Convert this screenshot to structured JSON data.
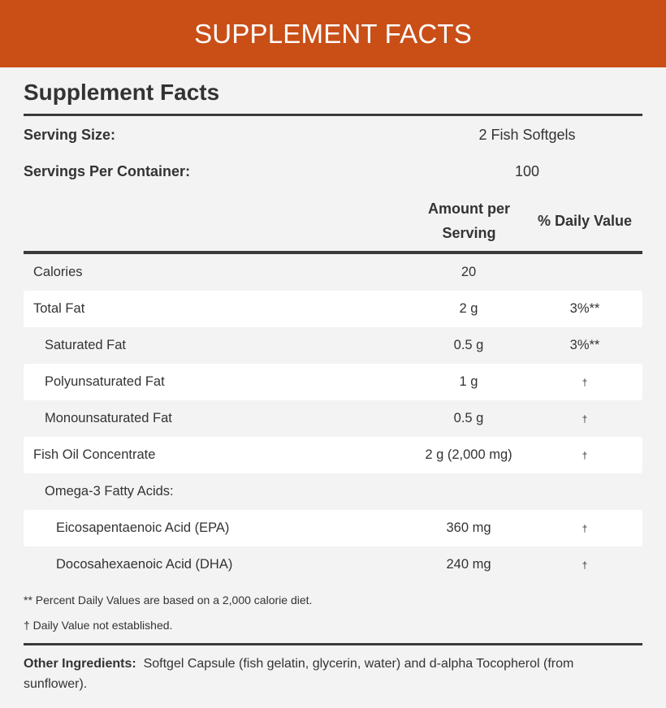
{
  "banner": {
    "title": "SUPPLEMENT FACTS"
  },
  "panel": {
    "title": "Supplement Facts",
    "serving_size": {
      "label": "Serving Size:",
      "value": "2 Fish Softgels"
    },
    "servings_per_container": {
      "label": "Servings Per Container:",
      "value": "100"
    },
    "columns": {
      "amount": "Amount per Serving",
      "daily_value": "% Daily Value"
    },
    "rows": [
      {
        "name": "Calories",
        "amount": "20",
        "dv": "",
        "indent": 0
      },
      {
        "name": "Total Fat",
        "amount": "2 g",
        "dv": "3%**",
        "indent": 0
      },
      {
        "name": "Saturated Fat",
        "amount": "0.5 g",
        "dv": "3%**",
        "indent": 1
      },
      {
        "name": "Polyunsaturated Fat",
        "amount": "1 g",
        "dv": "†",
        "indent": 1
      },
      {
        "name": "Monounsaturated Fat",
        "amount": "0.5 g",
        "dv": "†",
        "indent": 1
      },
      {
        "name": "Fish Oil Concentrate",
        "amount": "2 g (2,000 mg)",
        "dv": "†",
        "indent": 0
      },
      {
        "name": "Omega-3 Fatty Acids:",
        "amount": "",
        "dv": "",
        "indent": 1
      },
      {
        "name": "Eicosapentaenoic Acid (EPA)",
        "amount": "360 mg",
        "dv": "†",
        "indent": 2
      },
      {
        "name": "Docosahexaenoic Acid (DHA)",
        "amount": "240 mg",
        "dv": "†",
        "indent": 2
      }
    ],
    "footnotes": [
      "** Percent Daily Values are based on a 2,000 calorie diet.",
      "† Daily Value not established."
    ],
    "other_ingredients": {
      "label": "Other Ingredients:",
      "text": "Softgel Capsule (fish gelatin, glycerin, water) and d-alpha Tocopherol (from sunflower)."
    }
  },
  "colors": {
    "banner": "#c94f17",
    "background": "#f3f3f3",
    "row_alt": "#ffffff",
    "rule": "#3a3a3a"
  }
}
